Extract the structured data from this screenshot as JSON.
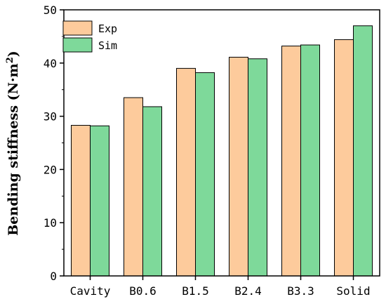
{
  "chart_data": {
    "type": "bar",
    "categories": [
      "Cavity",
      "B0.6",
      "B1.5",
      "B2.4",
      "B3.3",
      "Solid"
    ],
    "series": [
      {
        "name": "Exp",
        "values": [
          28.3,
          33.5,
          39.0,
          41.1,
          43.2,
          44.4
        ],
        "color": "#FDCB9C"
      },
      {
        "name": "Sim",
        "values": [
          28.2,
          31.8,
          38.2,
          40.8,
          43.4,
          47.0
        ],
        "color": "#7ED99A"
      }
    ],
    "xlabel": "",
    "ylabel": "Bending stiffness (N·m",
    "ylabel_sup": "2",
    "ylabel_close": ")",
    "ylim": [
      0,
      50
    ],
    "yticks": [
      0,
      10,
      20,
      30,
      40,
      50
    ],
    "legend_position": "top-left",
    "grid": false
  }
}
